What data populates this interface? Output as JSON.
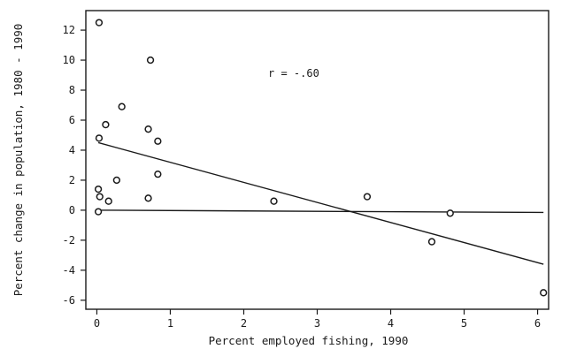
{
  "chart_data": {
    "type": "scatter",
    "xlabel": "Percent employed fishing, 1990",
    "ylabel": "Percent change in population, 1980 - 1990",
    "xlim": [
      -0.15,
      6.15
    ],
    "ylim": [
      -6.6,
      13.3
    ],
    "xticks": [
      0,
      1,
      2,
      3,
      4,
      5,
      6
    ],
    "yticks": [
      -6,
      -4,
      -2,
      0,
      2,
      4,
      6,
      8,
      10,
      12
    ],
    "grid": false,
    "annotation": "r = -.60",
    "points": [
      {
        "x": 0.03,
        "y": 12.5
      },
      {
        "x": 0.73,
        "y": 10.0
      },
      {
        "x": 0.34,
        "y": 6.9
      },
      {
        "x": 0.12,
        "y": 5.7
      },
      {
        "x": 0.7,
        "y": 5.4
      },
      {
        "x": 0.03,
        "y": 4.8
      },
      {
        "x": 0.83,
        "y": 4.6
      },
      {
        "x": 0.83,
        "y": 2.4
      },
      {
        "x": 0.27,
        "y": 2.0
      },
      {
        "x": 0.02,
        "y": 1.4
      },
      {
        "x": 0.04,
        "y": 0.9
      },
      {
        "x": 0.16,
        "y": 0.6
      },
      {
        "x": 0.7,
        "y": 0.8
      },
      {
        "x": 0.02,
        "y": -0.1
      },
      {
        "x": 2.41,
        "y": 0.6
      },
      {
        "x": 3.68,
        "y": 0.9
      },
      {
        "x": 4.81,
        "y": -0.2
      },
      {
        "x": 4.56,
        "y": -2.1
      },
      {
        "x": 6.08,
        "y": -5.5
      }
    ],
    "fit_line": {
      "x": [
        0.02,
        6.08
      ],
      "y": [
        4.5,
        -3.6
      ]
    },
    "reference_line": {
      "x": [
        0.02,
        6.08
      ],
      "y": [
        0,
        -0.15
      ]
    }
  }
}
